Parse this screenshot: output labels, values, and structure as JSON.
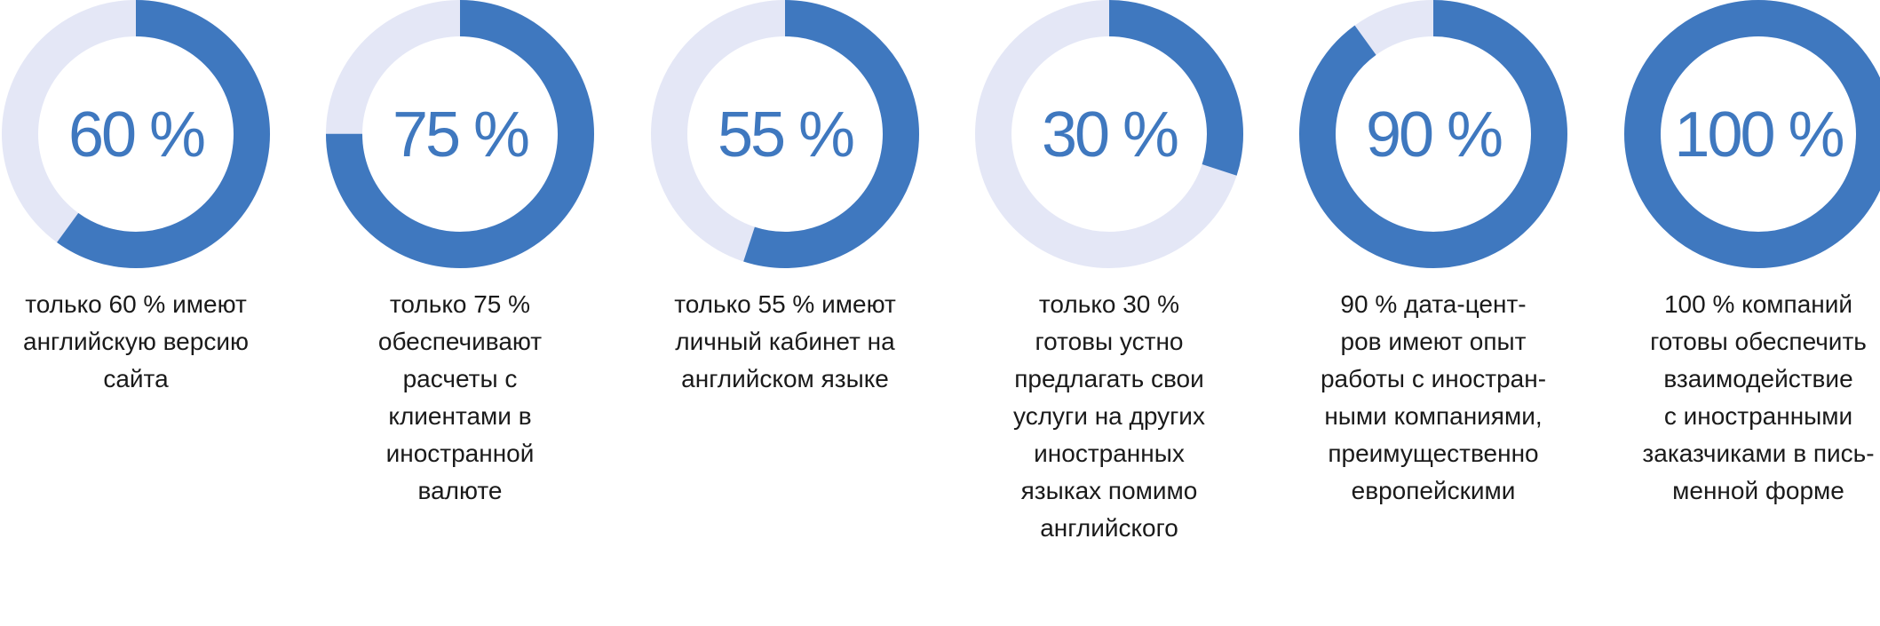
{
  "colors": {
    "filled": "#3f78bf",
    "track": "#e4e7f6",
    "text": "#1a1a1a"
  },
  "chart_data": {
    "type": "pie",
    "variant": "donut",
    "max": 100,
    "items": [
      {
        "value": 60,
        "value_label": "60 %",
        "caption_lines": [
          "только 60 % имеют",
          "английскую версию",
          "сайта"
        ]
      },
      {
        "value": 75,
        "value_label": "75 %",
        "caption_lines": [
          "только 75 %",
          "обеспечивают",
          "расчеты с",
          "клиентами в",
          "иностранной",
          "валюте"
        ]
      },
      {
        "value": 55,
        "value_label": "55 %",
        "caption_lines": [
          "только 55 % имеют",
          "личный кабинет на",
          "английском языке"
        ]
      },
      {
        "value": 30,
        "value_label": "30 %",
        "caption_lines": [
          "только 30 %",
          "готовы устно",
          "предлагать свои",
          "услуги на других",
          "иностранных",
          "языках помимо",
          "английского"
        ]
      },
      {
        "value": 90,
        "value_label": "90 %",
        "caption_lines": [
          "90 % дата-цент-",
          "ров имеют опыт",
          "работы с иностран-",
          "ными компаниями,",
          "преимущественно",
          "европейскими"
        ]
      },
      {
        "value": 100,
        "value_label": "100 %",
        "caption_lines": [
          "100 % компаний",
          "готовы обеспечить",
          "взаимодействие",
          "с иностранными",
          "заказчиками в пись-",
          "менной форме"
        ]
      }
    ]
  }
}
